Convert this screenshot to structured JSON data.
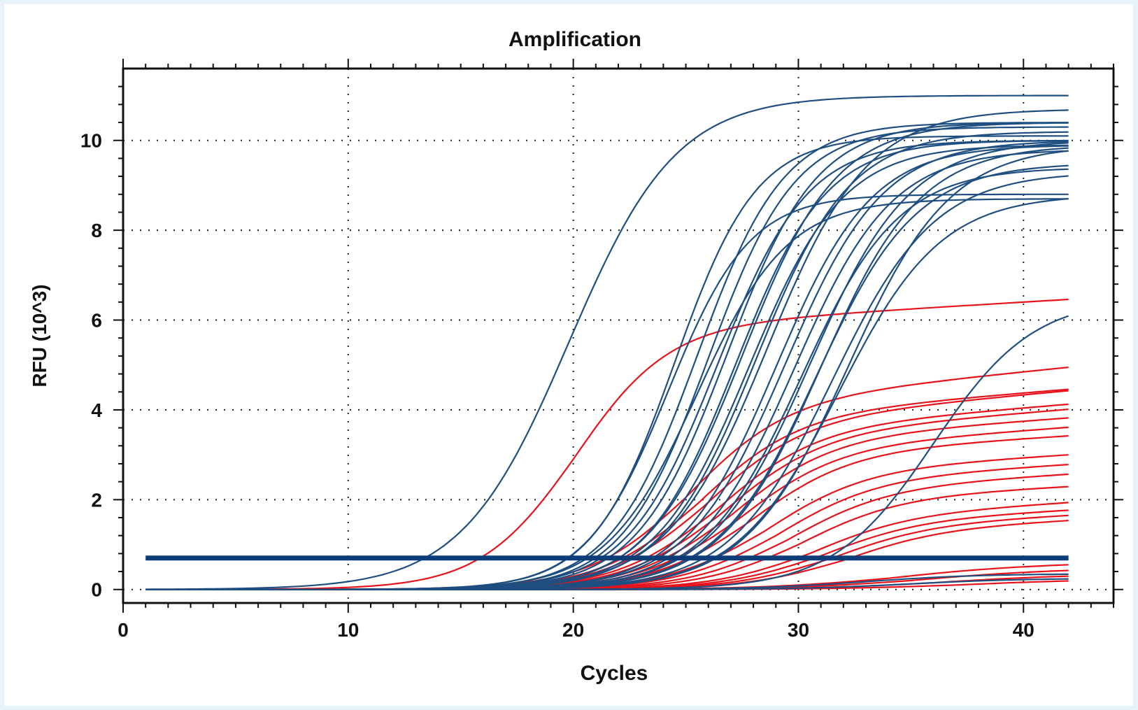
{
  "chart_data": {
    "type": "line",
    "title": "Amplification",
    "xlabel": "Cycles",
    "ylabel": "RFU (10^3)",
    "xlim": [
      0,
      44
    ],
    "ylim": [
      -0.3,
      11.6
    ],
    "x_ticks": [
      0,
      10,
      20,
      30,
      40
    ],
    "x_tick_labels": [
      "0",
      "10",
      "20",
      "30",
      "40"
    ],
    "y_ticks": [
      0,
      2,
      4,
      6,
      8,
      10
    ],
    "y_tick_labels": [
      "0",
      "2",
      "4",
      "6",
      "8",
      "10"
    ],
    "grid": true,
    "legend": "none",
    "x_range_cycles": [
      1,
      42
    ],
    "threshold": 0.7,
    "threshold_color": "#0d3d79",
    "series_colors": {
      "blue": "#1f4e80",
      "red": "#e8121b"
    },
    "curve_model": "logistic amplification: y = plateau / (1 + exp(-slope*(cycle - midpoint))) + drift*(cycle - midpoint)",
    "blue_series": [
      {
        "plateau": 11.0,
        "midpoint": 19.8,
        "slope": 0.42
      },
      {
        "plateau": 10.1,
        "midpoint": 24.5,
        "slope": 0.55
      },
      {
        "plateau": 10.4,
        "midpoint": 25.5,
        "slope": 0.52
      },
      {
        "plateau": 10.3,
        "midpoint": 26.0,
        "slope": 0.52
      },
      {
        "plateau": 10.0,
        "midpoint": 26.4,
        "slope": 0.5
      },
      {
        "plateau": 10.4,
        "midpoint": 26.8,
        "slope": 0.5
      },
      {
        "plateau": 10.0,
        "midpoint": 27.2,
        "slope": 0.5
      },
      {
        "plateau": 10.4,
        "midpoint": 27.5,
        "slope": 0.48
      },
      {
        "plateau": 9.9,
        "midpoint": 27.8,
        "slope": 0.48
      },
      {
        "plateau": 10.2,
        "midpoint": 28.1,
        "slope": 0.48
      },
      {
        "plateau": 8.8,
        "midpoint": 24.2,
        "slope": 0.55
      },
      {
        "plateau": 8.7,
        "midpoint": 25.5,
        "slope": 0.5
      },
      {
        "plateau": 10.7,
        "midpoint": 28.6,
        "slope": 0.45
      },
      {
        "plateau": 9.9,
        "midpoint": 29.0,
        "slope": 0.47
      },
      {
        "plateau": 10.0,
        "midpoint": 29.4,
        "slope": 0.46
      },
      {
        "plateau": 9.8,
        "midpoint": 29.8,
        "slope": 0.46
      },
      {
        "plateau": 9.4,
        "midpoint": 30.1,
        "slope": 0.46
      },
      {
        "plateau": 10.0,
        "midpoint": 30.5,
        "slope": 0.45
      },
      {
        "plateau": 9.5,
        "midpoint": 30.8,
        "slope": 0.45
      },
      {
        "plateau": 9.9,
        "midpoint": 31.0,
        "slope": 0.45
      },
      {
        "plateau": 9.3,
        "midpoint": 31.5,
        "slope": 0.44
      },
      {
        "plateau": 8.8,
        "midpoint": 31.8,
        "slope": 0.44
      },
      {
        "plateau": 9.9,
        "midpoint": 32.2,
        "slope": 0.44
      },
      {
        "plateau": 6.5,
        "midpoint": 36.0,
        "slope": 0.45
      },
      {
        "plateau": 0.35,
        "midpoint": 33.0,
        "slope": 0.4
      },
      {
        "plateau": 0.25,
        "midpoint": 35.0,
        "slope": 0.4
      }
    ],
    "red_series": [
      {
        "plateau": 5.8,
        "midpoint": 20.0,
        "slope": 0.48,
        "drift": 0.03
      },
      {
        "plateau": 4.1,
        "midpoint": 25.0,
        "slope": 0.45,
        "drift": 0.05
      },
      {
        "plateau": 3.8,
        "midpoint": 25.5,
        "slope": 0.45,
        "drift": 0.04
      },
      {
        "plateau": 3.7,
        "midpoint": 25.8,
        "slope": 0.45,
        "drift": 0.045
      },
      {
        "plateau": 3.5,
        "midpoint": 26.3,
        "slope": 0.45,
        "drift": 0.04
      },
      {
        "plateau": 3.4,
        "midpoint": 26.6,
        "slope": 0.45,
        "drift": 0.04
      },
      {
        "plateau": 3.3,
        "midpoint": 27.0,
        "slope": 0.45,
        "drift": 0.035
      },
      {
        "plateau": 3.1,
        "midpoint": 27.3,
        "slope": 0.45,
        "drift": 0.035
      },
      {
        "plateau": 3.0,
        "midpoint": 27.8,
        "slope": 0.45,
        "drift": 0.03
      },
      {
        "plateau": 2.6,
        "midpoint": 28.5,
        "slope": 0.45,
        "drift": 0.03
      },
      {
        "plateau": 2.4,
        "midpoint": 29.0,
        "slope": 0.45,
        "drift": 0.03
      },
      {
        "plateau": 2.2,
        "midpoint": 29.5,
        "slope": 0.45,
        "drift": 0.03
      },
      {
        "plateau": 2.0,
        "midpoint": 30.0,
        "slope": 0.45,
        "drift": 0.025
      },
      {
        "plateau": 1.6,
        "midpoint": 30.5,
        "slope": 0.45,
        "drift": 0.03
      },
      {
        "plateau": 1.5,
        "midpoint": 31.0,
        "slope": 0.45,
        "drift": 0.025
      },
      {
        "plateau": 1.4,
        "midpoint": 31.5,
        "slope": 0.45,
        "drift": 0.025
      },
      {
        "plateau": 1.3,
        "midpoint": 32.0,
        "slope": 0.45,
        "drift": 0.025
      },
      {
        "plateau": 0.5,
        "midpoint": 34.0,
        "slope": 0.35,
        "drift": 0.01
      },
      {
        "plateau": 0.4,
        "midpoint": 35.0,
        "slope": 0.35,
        "drift": 0.008
      },
      {
        "plateau": 0.3,
        "midpoint": 36.0,
        "slope": 0.35,
        "drift": 0.005
      },
      {
        "plateau": 0.2,
        "midpoint": 37.0,
        "slope": 0.35,
        "drift": 0.004
      }
    ]
  }
}
